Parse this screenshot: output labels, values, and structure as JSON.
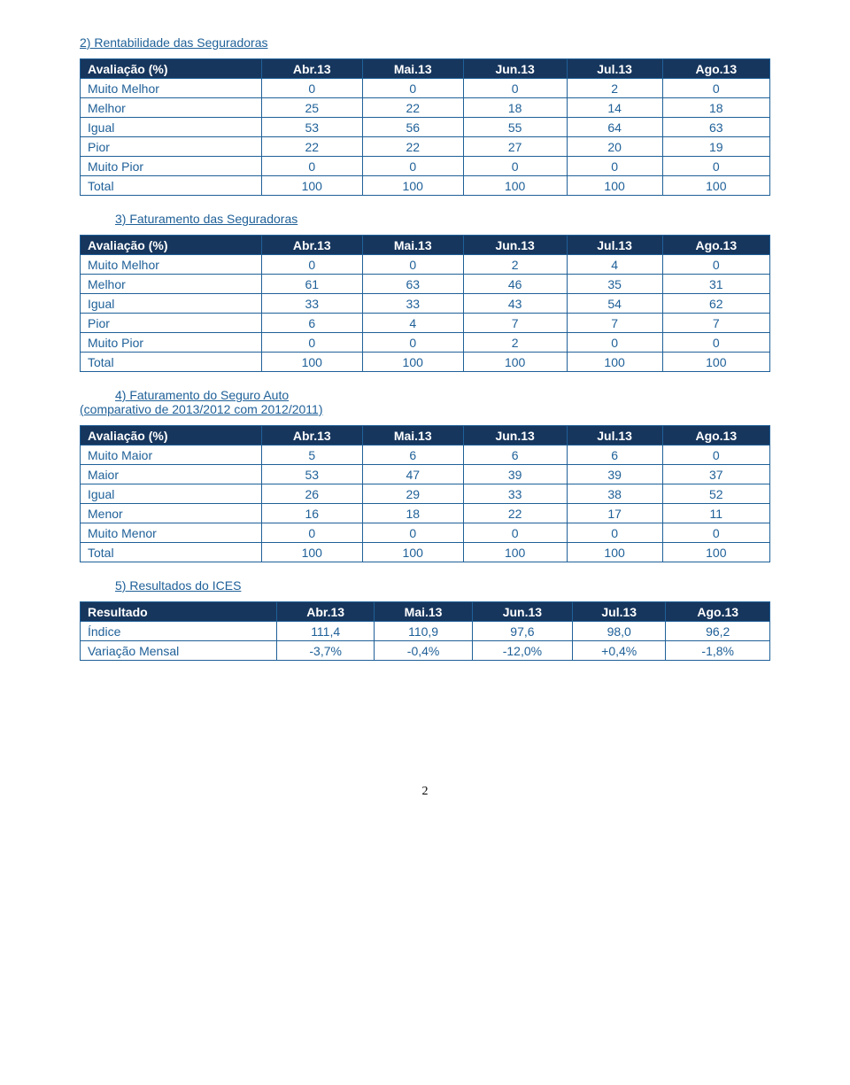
{
  "section2": {
    "title": "2) Rentabilidade das Seguradoras",
    "headers": [
      "Avaliação (%)",
      "Abr.13",
      "Mai.13",
      "Jun.13",
      "Jul.13",
      "Ago.13"
    ],
    "rows": [
      [
        "Muito Melhor",
        "0",
        "0",
        "0",
        "2",
        "0"
      ],
      [
        "Melhor",
        "25",
        "22",
        "18",
        "14",
        "18"
      ],
      [
        "Igual",
        "53",
        "56",
        "55",
        "64",
        "63"
      ],
      [
        "Pior",
        "22",
        "22",
        "27",
        "20",
        "19"
      ],
      [
        "Muito Pior",
        "0",
        "0",
        "0",
        "0",
        "0"
      ],
      [
        "Total",
        "100",
        "100",
        "100",
        "100",
        "100"
      ]
    ]
  },
  "section3": {
    "title": "3) Faturamento das Seguradoras",
    "headers": [
      "Avaliação (%)",
      "Abr.13",
      "Mai.13",
      "Jun.13",
      "Jul.13",
      "Ago.13"
    ],
    "rows": [
      [
        "Muito Melhor",
        "0",
        "0",
        "2",
        "4",
        "0"
      ],
      [
        "Melhor",
        "61",
        "63",
        "46",
        "35",
        "31"
      ],
      [
        "Igual",
        "33",
        "33",
        "43",
        "54",
        "62"
      ],
      [
        "Pior",
        "6",
        "4",
        "7",
        "7",
        "7"
      ],
      [
        "Muito Pior",
        "0",
        "0",
        "2",
        "0",
        "0"
      ],
      [
        "Total",
        "100",
        "100",
        "100",
        "100",
        "100"
      ]
    ]
  },
  "section4": {
    "title": "4) Faturamento do Seguro Auto",
    "subtitle": "(comparativo de 2013/2012 com 2012/2011)",
    "headers": [
      "Avaliação (%)",
      "Abr.13",
      "Mai.13",
      "Jun.13",
      "Jul.13",
      "Ago.13"
    ],
    "rows": [
      [
        "Muito Maior",
        "5",
        "6",
        "6",
        "6",
        "0"
      ],
      [
        "Maior",
        "53",
        "47",
        "39",
        "39",
        "37"
      ],
      [
        "Igual",
        "26",
        "29",
        "33",
        "38",
        "52"
      ],
      [
        "Menor",
        "16",
        "18",
        "22",
        "17",
        "11"
      ],
      [
        "Muito Menor",
        "0",
        "0",
        "0",
        "0",
        "0"
      ],
      [
        "Total",
        "100",
        "100",
        "100",
        "100",
        "100"
      ]
    ]
  },
  "section5": {
    "title": "5) Resultados do ICES",
    "headers": [
      "Resultado",
      "Abr.13",
      "Mai.13",
      "Jun.13",
      "Jul.13",
      "Ago.13"
    ],
    "rows": [
      [
        "Índice",
        "111,4",
        "110,9",
        "97,6",
        "98,0",
        "96,2"
      ],
      [
        "Variação Mensal",
        "-3,7%",
        "-0,4%",
        "-12,0%",
        "+0,4%",
        "-1,8%"
      ]
    ]
  },
  "page_number": "2"
}
